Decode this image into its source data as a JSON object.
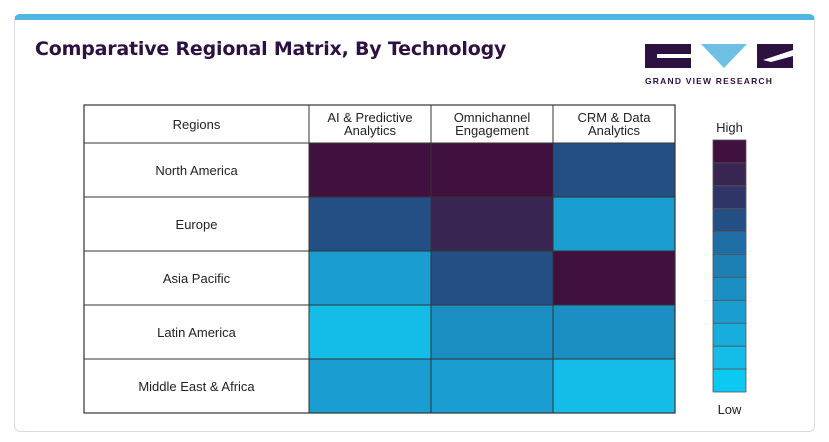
{
  "header": {
    "title": "Comparative Regional Matrix, By Technology",
    "logo_text": "GRAND VIEW RESEARCH",
    "accent_color": "#4fb6e3",
    "brand_color": "#2d1140",
    "logo_color": "#6ec1e4"
  },
  "chart_data": {
    "type": "heatmap",
    "row_header": "Regions",
    "columns": [
      [
        "AI & Predictive",
        "Analytics"
      ],
      [
        "Omnichannel",
        "Engagement"
      ],
      [
        "CRM & Data",
        "Analytics"
      ]
    ],
    "rows": [
      "North America",
      "Europe",
      "Asia Pacific",
      "Latin America",
      "Middle East & Africa"
    ],
    "values": [
      [
        10,
        10,
        7
      ],
      [
        7,
        9,
        4
      ],
      [
        4,
        7,
        10
      ],
      [
        2,
        5,
        5
      ],
      [
        4,
        4,
        2
      ]
    ],
    "scale": {
      "min": 1,
      "max": 10,
      "high_label": "High",
      "low_label": "Low",
      "colors": [
        "#0bc9f1",
        "#14bce8",
        "#17addd",
        "#1a9ed2",
        "#1b8fc4",
        "#1c80b5",
        "#1f6fa6",
        "#244f84",
        "#2f3567",
        "#382552",
        "#40113e"
      ]
    }
  }
}
